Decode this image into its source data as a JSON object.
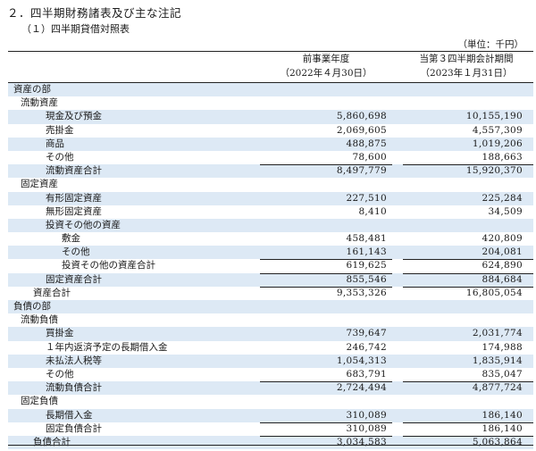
{
  "title": "２．四半期財務諸表及び主な注記",
  "subtitle": "（１）四半期貸借対照表",
  "unit": "（単位：千円）",
  "columns": [
    {
      "line1": "前事業年度",
      "line2": "（2022年４月30日）"
    },
    {
      "line1": "当第３四半期会計期間",
      "line2": "（2023年１月31日）"
    }
  ],
  "rows": [
    {
      "label": "資産の部",
      "v1": "",
      "v2": ""
    },
    {
      "label": "流動資産",
      "v1": "",
      "v2": ""
    },
    {
      "label": "現金及び預金",
      "v1": "5,860,698",
      "v2": "10,155,190"
    },
    {
      "label": "売掛金",
      "v1": "2,069,605",
      "v2": "4,557,309"
    },
    {
      "label": "商品",
      "v1": "488,875",
      "v2": "1,019,206"
    },
    {
      "label": "その他",
      "v1": "78,600",
      "v2": "188,663"
    },
    {
      "label": "流動資産合計",
      "v1": "8,497,779",
      "v2": "15,920,370"
    },
    {
      "label": "固定資産",
      "v1": "",
      "v2": ""
    },
    {
      "label": "有形固定資産",
      "v1": "227,510",
      "v2": "225,284"
    },
    {
      "label": "無形固定資産",
      "v1": "8,410",
      "v2": "34,509"
    },
    {
      "label": "投資その他の資産",
      "v1": "",
      "v2": ""
    },
    {
      "label": "敷金",
      "v1": "458,481",
      "v2": "420,809"
    },
    {
      "label": "その他",
      "v1": "161,143",
      "v2": "204,081"
    },
    {
      "label": "投資その他の資産合計",
      "v1": "619,625",
      "v2": "624,890"
    },
    {
      "label": "固定資産合計",
      "v1": "855,546",
      "v2": "884,684"
    },
    {
      "label": "資産合計",
      "v1": "9,353,326",
      "v2": "16,805,054"
    },
    {
      "label": "負債の部",
      "v1": "",
      "v2": ""
    },
    {
      "label": "流動負債",
      "v1": "",
      "v2": ""
    },
    {
      "label": "買掛金",
      "v1": "739,647",
      "v2": "2,031,774"
    },
    {
      "label": "１年内返済予定の長期借入金",
      "v1": "246,742",
      "v2": "174,988"
    },
    {
      "label": "未払法人税等",
      "v1": "1,054,313",
      "v2": "1,835,914"
    },
    {
      "label": "その他",
      "v1": "683,791",
      "v2": "835,047"
    },
    {
      "label": "流動負債合計",
      "v1": "2,724,494",
      "v2": "4,877,724"
    },
    {
      "label": "固定負債",
      "v1": "",
      "v2": ""
    },
    {
      "label": "長期借入金",
      "v1": "310,089",
      "v2": "186,140"
    },
    {
      "label": "固定負債合計",
      "v1": "310,089",
      "v2": "186,140"
    },
    {
      "label": "負債合計",
      "v1": "3,034,583",
      "v2": "5,063,864"
    }
  ]
}
